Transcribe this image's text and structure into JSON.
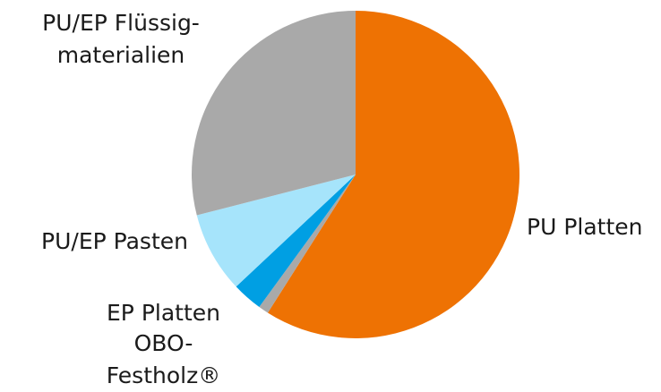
{
  "chart_data": {
    "type": "pie",
    "categories": [
      "PU Platten",
      "OBO-Festholz®",
      "EP Platten",
      "PU/EP Pasten",
      "PU/EP Flüssig-\nmaterialien"
    ],
    "values": [
      59,
      1,
      3,
      8,
      29
    ],
    "colors": [
      "#ee7203",
      "#a9a9a9",
      "#009fe3",
      "#a6e4fb",
      "#a9a9a9"
    ]
  }
}
